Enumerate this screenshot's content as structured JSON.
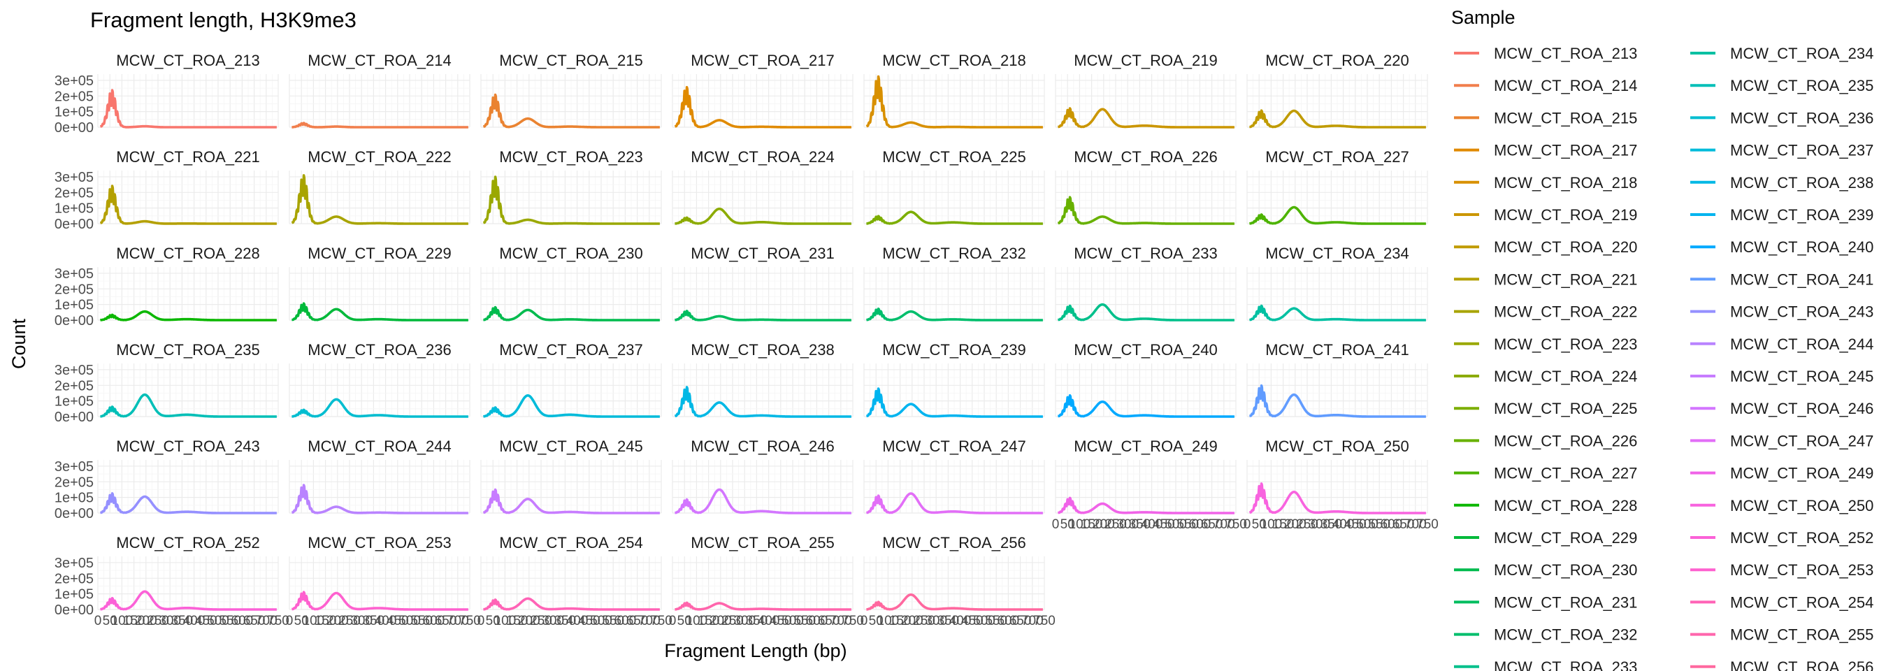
{
  "chart_data": {
    "type": "line",
    "title": "Fragment length, H3K9me3",
    "xlabel": "Fragment Length (bp)",
    "ylabel": "Count",
    "ylim": [
      0,
      340000
    ],
    "xlim": [
      0,
      750
    ],
    "y_ticks": [
      "0e+00",
      "1e+05",
      "2e+05",
      "3e+05"
    ],
    "y_tick_values": [
      0,
      100000,
      200000,
      300000
    ],
    "x_ticks": [
      "0",
      "50",
      "100",
      "150",
      "200",
      "250",
      "300",
      "350",
      "400",
      "450",
      "500",
      "550",
      "600",
      "650",
      "700",
      "750"
    ],
    "grid": true,
    "facet_columns": 7,
    "legend_title": "Sample",
    "legend_position": "right",
    "series": [
      {
        "name": "MCW_CT_ROA_213",
        "color": "#F8766D",
        "nuc1": 245000,
        "nuc2": 6000,
        "nuc3": 0
      },
      {
        "name": "MCW_CT_ROA_214",
        "color": "#F17F4D",
        "nuc1": 28000,
        "nuc2": 4000,
        "nuc3": 0
      },
      {
        "name": "MCW_CT_ROA_215",
        "color": "#EA8331",
        "nuc1": 215000,
        "nuc2": 55000,
        "nuc3": 4000
      },
      {
        "name": "MCW_CT_ROA_217",
        "color": "#E08A00",
        "nuc1": 265000,
        "nuc2": 45000,
        "nuc3": 3000
      },
      {
        "name": "MCW_CT_ROA_218",
        "color": "#D89000",
        "nuc1": 335000,
        "nuc2": 30000,
        "nuc3": 2000
      },
      {
        "name": "MCW_CT_ROA_219",
        "color": "#CB9600",
        "nuc1": 125000,
        "nuc2": 115000,
        "nuc3": 10000
      },
      {
        "name": "MCW_CT_ROA_220",
        "color": "#C09B00",
        "nuc1": 110000,
        "nuc2": 105000,
        "nuc3": 9000
      },
      {
        "name": "MCW_CT_ROA_221",
        "color": "#B4A000",
        "nuc1": 250000,
        "nuc2": 15000,
        "nuc3": 1000
      },
      {
        "name": "MCW_CT_ROA_222",
        "color": "#A8A400",
        "nuc1": 320000,
        "nuc2": 45000,
        "nuc3": 3000
      },
      {
        "name": "MCW_CT_ROA_223",
        "color": "#9AA800",
        "nuc1": 310000,
        "nuc2": 25000,
        "nuc3": 2000
      },
      {
        "name": "MCW_CT_ROA_224",
        "color": "#8CAB00",
        "nuc1": 40000,
        "nuc2": 95000,
        "nuc3": 10000
      },
      {
        "name": "MCW_CT_ROA_225",
        "color": "#7CAE00",
        "nuc1": 50000,
        "nuc2": 75000,
        "nuc3": 8000
      },
      {
        "name": "MCW_CT_ROA_226",
        "color": "#68B100",
        "nuc1": 175000,
        "nuc2": 45000,
        "nuc3": 4000
      },
      {
        "name": "MCW_CT_ROA_227",
        "color": "#4DB300",
        "nuc1": 60000,
        "nuc2": 105000,
        "nuc3": 9000
      },
      {
        "name": "MCW_CT_ROA_228",
        "color": "#0CB702",
        "nuc1": 35000,
        "nuc2": 55000,
        "nuc3": 6000
      },
      {
        "name": "MCW_CT_ROA_229",
        "color": "#00B93A",
        "nuc1": 110000,
        "nuc2": 70000,
        "nuc3": 6000
      },
      {
        "name": "MCW_CT_ROA_230",
        "color": "#00BB4E",
        "nuc1": 85000,
        "nuc2": 65000,
        "nuc3": 5000
      },
      {
        "name": "MCW_CT_ROA_231",
        "color": "#00BD5F",
        "nuc1": 60000,
        "nuc2": 25000,
        "nuc3": 3000
      },
      {
        "name": "MCW_CT_ROA_232",
        "color": "#00BE6C",
        "nuc1": 75000,
        "nuc2": 55000,
        "nuc3": 5000
      },
      {
        "name": "MCW_CT_ROA_233",
        "color": "#00C08B",
        "nuc1": 95000,
        "nuc2": 100000,
        "nuc3": 9000
      },
      {
        "name": "MCW_CT_ROA_234",
        "color": "#00C0A2",
        "nuc1": 95000,
        "nuc2": 75000,
        "nuc3": 6000
      },
      {
        "name": "MCW_CT_ROA_235",
        "color": "#00BFB7",
        "nuc1": 65000,
        "nuc2": 140000,
        "nuc3": 12000
      },
      {
        "name": "MCW_CT_ROA_236",
        "color": "#00BDD0",
        "nuc1": 45000,
        "nuc2": 110000,
        "nuc3": 9000
      },
      {
        "name": "MCW_CT_ROA_237",
        "color": "#00BBDA",
        "nuc1": 60000,
        "nuc2": 135000,
        "nuc3": 12000
      },
      {
        "name": "MCW_CT_ROA_238",
        "color": "#00B8E5",
        "nuc1": 195000,
        "nuc2": 90000,
        "nuc3": 7000
      },
      {
        "name": "MCW_CT_ROA_239",
        "color": "#00B4EF",
        "nuc1": 185000,
        "nuc2": 80000,
        "nuc3": 6000
      },
      {
        "name": "MCW_CT_ROA_240",
        "color": "#00A9FF",
        "nuc1": 140000,
        "nuc2": 95000,
        "nuc3": 8000
      },
      {
        "name": "MCW_CT_ROA_241",
        "color": "#619CFF",
        "nuc1": 205000,
        "nuc2": 140000,
        "nuc3": 10000
      },
      {
        "name": "MCW_CT_ROA_243",
        "color": "#9590FF",
        "nuc1": 130000,
        "nuc2": 105000,
        "nuc3": 8000
      },
      {
        "name": "MCW_CT_ROA_244",
        "color": "#B983FF",
        "nuc1": 185000,
        "nuc2": 40000,
        "nuc3": 3000
      },
      {
        "name": "MCW_CT_ROA_245",
        "color": "#C77CFF",
        "nuc1": 155000,
        "nuc2": 90000,
        "nuc3": 7000
      },
      {
        "name": "MCW_CT_ROA_246",
        "color": "#D376FF",
        "nuc1": 90000,
        "nuc2": 150000,
        "nuc3": 12000
      },
      {
        "name": "MCW_CT_ROA_247",
        "color": "#E26EF7",
        "nuc1": 115000,
        "nuc2": 125000,
        "nuc3": 10000
      },
      {
        "name": "MCW_CT_ROA_249",
        "color": "#F063E8",
        "nuc1": 100000,
        "nuc2": 60000,
        "nuc3": 5000
      },
      {
        "name": "MCW_CT_ROA_250",
        "color": "#F863DF",
        "nuc1": 195000,
        "nuc2": 135000,
        "nuc3": 10000
      },
      {
        "name": "MCW_CT_ROA_252",
        "color": "#FB61D7",
        "nuc1": 75000,
        "nuc2": 115000,
        "nuc3": 10000
      },
      {
        "name": "MCW_CT_ROA_253",
        "color": "#FE61CF",
        "nuc1": 115000,
        "nuc2": 105000,
        "nuc3": 9000
      },
      {
        "name": "MCW_CT_ROA_254",
        "color": "#FF63B6",
        "nuc1": 65000,
        "nuc2": 70000,
        "nuc3": 6000
      },
      {
        "name": "MCW_CT_ROA_255",
        "color": "#FF65AC",
        "nuc1": 45000,
        "nuc2": 40000,
        "nuc3": 4000
      },
      {
        "name": "MCW_CT_ROA_256",
        "color": "#FF689F",
        "nuc1": 50000,
        "nuc2": 95000,
        "nuc3": 8000
      }
    ]
  }
}
